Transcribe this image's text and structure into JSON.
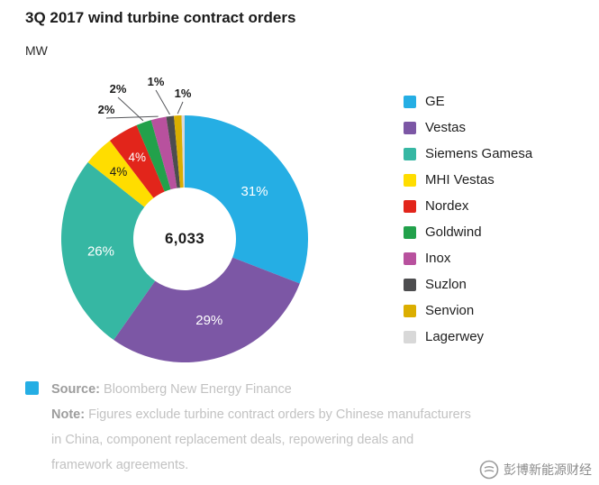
{
  "page": {
    "title": "3Q 2017 wind turbine contract orders",
    "unit": "MW"
  },
  "chart_data": {
    "type": "pie",
    "subtype": "donut",
    "title": "3Q 2017 wind turbine contract orders",
    "unit": "MW",
    "center_total": "6,033",
    "legend_position": "right",
    "slices": [
      {
        "name": "GE",
        "pct": 31,
        "label": "31%",
        "color": "#25AEE4",
        "label_color": "#ffffff",
        "placement": "inside"
      },
      {
        "name": "Vestas",
        "pct": 29,
        "label": "29%",
        "color": "#7C57A5",
        "label_color": "#ffffff",
        "placement": "inside"
      },
      {
        "name": "Siemens Gamesa",
        "pct": 26,
        "label": "26%",
        "color": "#36B7A3",
        "label_color": "#ffffff",
        "placement": "inside"
      },
      {
        "name": "MHI Vestas",
        "pct": 4,
        "label": "4%",
        "color": "#FFDD00",
        "label_color": "#1b1b1b",
        "placement": "inside"
      },
      {
        "name": "Nordex",
        "pct": 4,
        "label": "4%",
        "color": "#E2251B",
        "label_color": "#ffffff",
        "placement": "inside"
      },
      {
        "name": "Goldwind",
        "pct": 2,
        "label": "2%",
        "color": "#22A14B",
        "label_color": "#1b1b1b",
        "placement": "outside"
      },
      {
        "name": "Inox",
        "pct": 2,
        "label": "2%",
        "color": "#B8519E",
        "label_color": "#1b1b1b",
        "placement": "outside"
      },
      {
        "name": "Suzlon",
        "pct": 1,
        "label": "1%",
        "color": "#4D4D4F",
        "label_color": "#1b1b1b",
        "placement": "outside"
      },
      {
        "name": "Senvion",
        "pct": 1,
        "label": "1%",
        "color": "#DBAE00",
        "label_color": "#1b1b1b",
        "placement": "outside"
      },
      {
        "name": "Lagerwey",
        "pct": 0.4,
        "label": "",
        "color": "#D8D8D8",
        "label_color": "#1b1b1b",
        "placement": "none"
      }
    ]
  },
  "footer": {
    "swatch_color": "#25AEE4",
    "source_label": "Source:",
    "source_text": "Bloomberg New Energy Finance",
    "note_label": "Note:",
    "note_text": "Figures exclude turbine contract orders by Chinese manufacturers in China, component replacement deals, repowering deals and framework agreements."
  },
  "watermark": {
    "text": "彭博新能源财经"
  }
}
